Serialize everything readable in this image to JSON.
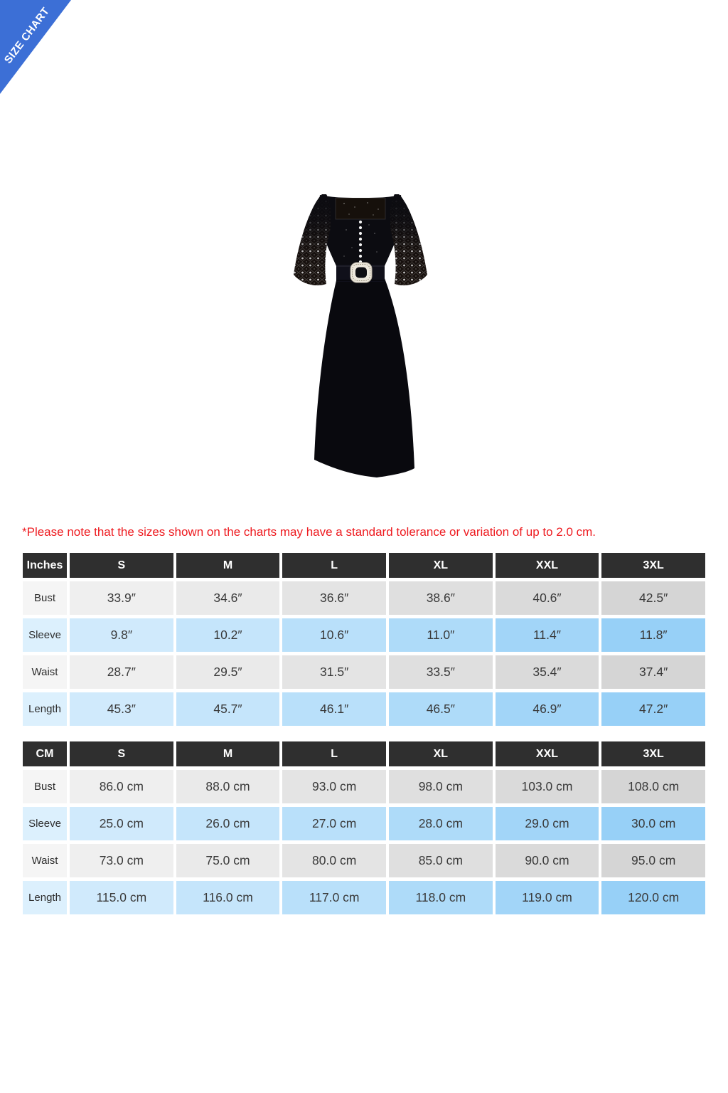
{
  "banner": {
    "label": "SIZE CHART"
  },
  "product_image": {
    "description": "black midi dress with lace bell sleeves, square neckline, front buttons and rhinestone-buckle belt"
  },
  "note": "*Please note that the sizes shown on the charts may have a standard tolerance or variation of up to 2.0 cm.",
  "colors": {
    "banner_blue": "#3c6fd6",
    "header_dark": "#2f2f2f",
    "note_red": "#ee1b20",
    "row_gray_start": "#f5f5f5",
    "row_gray_end": "#d5d5d5",
    "row_blue_start": "#dcf0fd",
    "row_blue_end": "#97d0f7"
  },
  "row_shades": {
    "gray": [
      "#f5f5f5",
      "#efefef",
      "#eaeaea",
      "#e4e4e4",
      "#dfdfdf",
      "#dadada",
      "#d5d5d5"
    ],
    "blue": [
      "#dcf0fd",
      "#d0eafc",
      "#c5e5fb",
      "#b9e0fa",
      "#aedbf9",
      "#a2d5f8",
      "#97d0f7"
    ]
  },
  "tables": [
    {
      "unit_header": "Inches",
      "columns": [
        "S",
        "M",
        "L",
        "XL",
        "XXL",
        "3XL"
      ],
      "rows": [
        {
          "label": "Bust",
          "values": [
            "33.9″",
            "34.6″",
            "36.6″",
            "38.6″",
            "40.6″",
            "42.5″"
          ]
        },
        {
          "label": "Sleeve",
          "values": [
            "9.8″",
            "10.2″",
            "10.6″",
            "11.0″",
            "11.4″",
            "11.8″"
          ]
        },
        {
          "label": "Waist",
          "values": [
            "28.7″",
            "29.5″",
            "31.5″",
            "33.5″",
            "35.4″",
            "37.4″"
          ]
        },
        {
          "label": "Length",
          "values": [
            "45.3″",
            "45.7″",
            "46.1″",
            "46.5″",
            "46.9″",
            "47.2″"
          ]
        }
      ]
    },
    {
      "unit_header": "CM",
      "columns": [
        "S",
        "M",
        "L",
        "XL",
        "XXL",
        "3XL"
      ],
      "rows": [
        {
          "label": "Bust",
          "values": [
            "86.0 cm",
            "88.0 cm",
            "93.0 cm",
            "98.0 cm",
            "103.0 cm",
            "108.0 cm"
          ]
        },
        {
          "label": "Sleeve",
          "values": [
            "25.0 cm",
            "26.0 cm",
            "27.0 cm",
            "28.0 cm",
            "29.0 cm",
            "30.0 cm"
          ]
        },
        {
          "label": "Waist",
          "values": [
            "73.0 cm",
            "75.0 cm",
            "80.0 cm",
            "85.0 cm",
            "90.0 cm",
            "95.0 cm"
          ]
        },
        {
          "label": "Length",
          "values": [
            "115.0 cm",
            "116.0 cm",
            "117.0 cm",
            "118.0 cm",
            "119.0 cm",
            "120.0 cm"
          ]
        }
      ]
    }
  ]
}
